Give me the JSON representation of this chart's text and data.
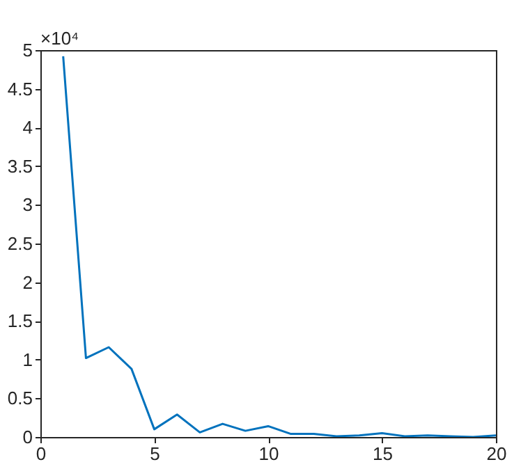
{
  "chart_data": {
    "type": "line",
    "x": [
      1,
      2,
      3,
      4,
      5,
      6,
      7,
      8,
      9,
      10,
      11,
      12,
      13,
      14,
      15,
      16,
      17,
      18,
      19,
      20
    ],
    "series": [
      {
        "color": "#0072bd",
        "values": [
          4.92,
          1.02,
          1.16,
          0.88,
          0.1,
          0.29,
          0.06,
          0.17,
          0.08,
          0.14,
          0.04,
          0.04,
          0.01,
          0.02,
          0.05,
          0.01,
          0.02,
          0.01,
          0.0,
          0.02
        ]
      }
    ],
    "xlim": [
      0,
      20
    ],
    "xticks": [
      0,
      5,
      10,
      15,
      20
    ],
    "ylim": [
      0,
      5
    ],
    "yticks": [
      0,
      0.5,
      1,
      1.5,
      2,
      2.5,
      3,
      3.5,
      4,
      4.5,
      5
    ],
    "annotations": [
      "×10⁴"
    ],
    "grid": false,
    "marker": "none",
    "line_style": "solid"
  }
}
